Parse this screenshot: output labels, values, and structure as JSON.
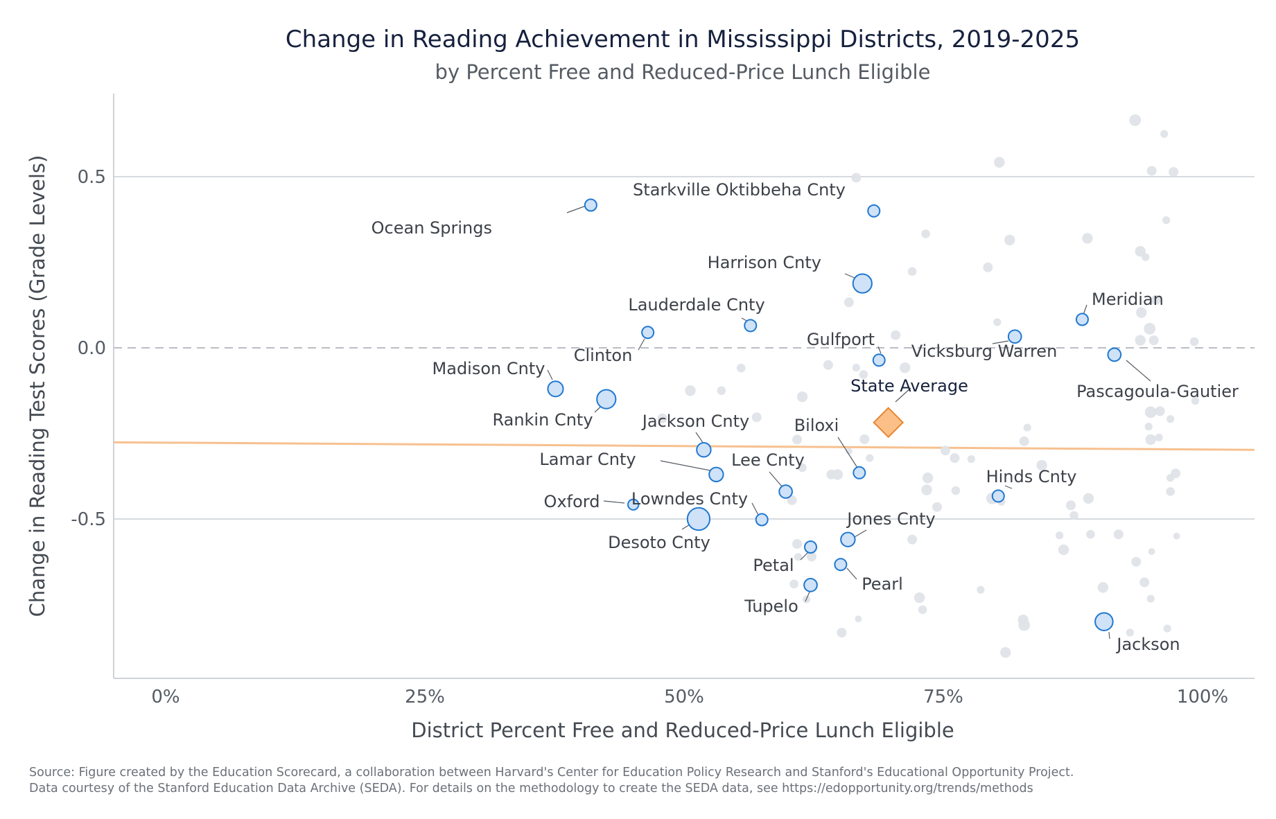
{
  "chart_data": {
    "type": "scatter",
    "title": "Change in Reading Achievement in Mississippi Districts, 2019-2025",
    "subtitle": "by Percent Free and Reduced-Price Lunch Eligible",
    "xlabel": "District Percent Free and Reduced-Price Lunch Eligible",
    "ylabel": "Change in Reading Test Scores (Grade Levels)",
    "xlim": [
      -0.05,
      1.05
    ],
    "ylim": [
      -0.97,
      0.74
    ],
    "x_ticks": [
      {
        "value": 0,
        "label": "0%"
      },
      {
        "value": 0.25,
        "label": "25%"
      },
      {
        "value": 0.5,
        "label": "50%"
      },
      {
        "value": 0.75,
        "label": "75%"
      },
      {
        "value": 1,
        "label": "100%"
      }
    ],
    "y_ticks": [
      {
        "value": 0.5,
        "label": "0.5"
      },
      {
        "value": 0,
        "label": "0.0"
      },
      {
        "value": -0.5,
        "label": "-0.5"
      }
    ],
    "grid": "horizontal",
    "zero_line": "dashed",
    "trend_line": {
      "x": [
        -0.05,
        1.05
      ],
      "y": [
        -0.276,
        -0.298
      ],
      "color": "#f7c08f"
    },
    "colors": {
      "background": "#b9c0c8",
      "highlighted_fill": "#cfe2f7",
      "highlighted_stroke": "#1f78d1",
      "state_fill": "#fbc088",
      "state_stroke": "#e8842f"
    },
    "highlighted": [
      {
        "name": "Starkville Oktibbeha Cnty",
        "x": 0.683,
        "y": 0.4,
        "size": 1.0
      },
      {
        "name": "Ocean Springs",
        "x": 0.41,
        "y": 0.417,
        "size": 1.0
      },
      {
        "name": "Harrison Cnty",
        "x": 0.672,
        "y": 0.188,
        "size": 1.6
      },
      {
        "name": "Meridian",
        "x": 0.884,
        "y": 0.083,
        "size": 1.0
      },
      {
        "name": "Lauderdale Cnty",
        "x": 0.564,
        "y": 0.065,
        "size": 1.0
      },
      {
        "name": "Clinton",
        "x": 0.465,
        "y": 0.045,
        "size": 1.0
      },
      {
        "name": "Vicksburg Warren",
        "x": 0.819,
        "y": 0.033,
        "size": 1.1
      },
      {
        "name": "Gulfport",
        "x": 0.688,
        "y": -0.036,
        "size": 1.0
      },
      {
        "name": "Pascagoula-Gautier",
        "x": 0.915,
        "y": -0.02,
        "size": 1.1
      },
      {
        "name": "Madison Cnty",
        "x": 0.376,
        "y": -0.12,
        "size": 1.3
      },
      {
        "name": "Rankin Cnty",
        "x": 0.425,
        "y": -0.15,
        "size": 1.6
      },
      {
        "name": "Jackson Cnty",
        "x": 0.519,
        "y": -0.298,
        "size": 1.2
      },
      {
        "name": "Biloxi",
        "x": 0.669,
        "y": -0.365,
        "size": 1.0
      },
      {
        "name": "Lamar Cnty",
        "x": 0.531,
        "y": -0.37,
        "size": 1.2
      },
      {
        "name": "Hinds Cnty",
        "x": 0.803,
        "y": -0.433,
        "size": 1.0
      },
      {
        "name": "Lee Cnty",
        "x": 0.598,
        "y": -0.42,
        "size": 1.1
      },
      {
        "name": "Oxford",
        "x": 0.451,
        "y": -0.458,
        "size": 0.9
      },
      {
        "name": "Lowndes Cnty",
        "x": 0.575,
        "y": -0.502,
        "size": 1.0
      },
      {
        "name": "Desoto Cnty",
        "x": 0.514,
        "y": -0.5,
        "size": 1.9
      },
      {
        "name": "Jones Cnty",
        "x": 0.658,
        "y": -0.56,
        "size": 1.2
      },
      {
        "name": "Petal",
        "x": 0.622,
        "y": -0.582,
        "size": 1.0
      },
      {
        "name": "Pearl",
        "x": 0.651,
        "y": -0.633,
        "size": 1.0
      },
      {
        "name": "Tupelo",
        "x": 0.622,
        "y": -0.693,
        "size": 1.1
      },
      {
        "name": "Jackson",
        "x": 0.905,
        "y": -0.8,
        "size": 1.5
      }
    ],
    "state_average": {
      "name": "State Average",
      "x": 0.697,
      "y": -0.218
    },
    "background_points": [
      [
        0.935,
        0.665,
        1.2
      ],
      [
        0.963,
        0.625,
        0.8
      ],
      [
        0.804,
        0.542,
        1.1
      ],
      [
        0.951,
        0.517,
        1.0
      ],
      [
        0.972,
        0.514,
        1.0
      ],
      [
        0.666,
        0.497,
        1.0
      ],
      [
        0.965,
        0.373,
        0.8
      ],
      [
        0.733,
        0.333,
        0.9
      ],
      [
        0.814,
        0.315,
        1.1
      ],
      [
        0.889,
        0.32,
        1.1
      ],
      [
        0.94,
        0.282,
        1.1
      ],
      [
        0.945,
        0.265,
        0.8
      ],
      [
        0.793,
        0.235,
        1.0
      ],
      [
        0.72,
        0.223,
        0.9
      ],
      [
        0.659,
        0.133,
        1.0
      ],
      [
        0.955,
        0.14,
        1.0
      ],
      [
        0.941,
        0.103,
        1.1
      ],
      [
        0.949,
        0.056,
        1.2
      ],
      [
        0.802,
        0.075,
        0.8
      ],
      [
        0.704,
        0.037,
        1.0
      ],
      [
        0.94,
        0.022,
        1.1
      ],
      [
        0.953,
        0.022,
        1.0
      ],
      [
        0.992,
        0.018,
        0.9
      ],
      [
        0.639,
        -0.05,
        1.0
      ],
      [
        0.713,
        -0.058,
        1.1
      ],
      [
        0.555,
        -0.059,
        0.9
      ],
      [
        0.673,
        -0.078,
        0.9
      ],
      [
        0.666,
        -0.058,
        0.8
      ],
      [
        0.506,
        -0.125,
        1.1
      ],
      [
        0.536,
        -0.125,
        0.9
      ],
      [
        0.614,
        -0.143,
        1.1
      ],
      [
        0.993,
        -0.155,
        0.8
      ],
      [
        0.95,
        -0.188,
        1.2
      ],
      [
        0.959,
        -0.185,
        1.0
      ],
      [
        0.969,
        -0.208,
        0.8
      ],
      [
        0.479,
        -0.206,
        1.0
      ],
      [
        0.57,
        -0.203,
        1.0
      ],
      [
        0.831,
        -0.233,
        0.8
      ],
      [
        0.948,
        -0.23,
        0.8
      ],
      [
        0.95,
        -0.268,
        1.1
      ],
      [
        0.958,
        -0.262,
        0.8
      ],
      [
        0.609,
        -0.268,
        1.0
      ],
      [
        0.674,
        -0.267,
        1.0
      ],
      [
        0.828,
        -0.273,
        1.0
      ],
      [
        0.752,
        -0.3,
        1.0
      ],
      [
        0.761,
        -0.322,
        1.0
      ],
      [
        0.679,
        -0.322,
        0.8
      ],
      [
        0.777,
        -0.325,
        0.8
      ],
      [
        0.659,
        -0.302,
        0.7
      ],
      [
        0.614,
        -0.35,
        0.9
      ],
      [
        0.648,
        -0.37,
        1.1
      ],
      [
        0.642,
        -0.37,
        1.0
      ],
      [
        0.735,
        -0.38,
        1.1
      ],
      [
        0.969,
        -0.38,
        0.8
      ],
      [
        0.974,
        -0.367,
        1.0
      ],
      [
        0.845,
        -0.343,
        1.1
      ],
      [
        0.734,
        -0.415,
        1.1
      ],
      [
        0.762,
        -0.417,
        0.9
      ],
      [
        0.797,
        -0.44,
        1.2
      ],
      [
        0.806,
        -0.45,
        0.8
      ],
      [
        0.89,
        -0.44,
        1.1
      ],
      [
        0.873,
        -0.46,
        1.0
      ],
      [
        0.969,
        -0.42,
        0.9
      ],
      [
        0.604,
        -0.445,
        1.0
      ],
      [
        0.744,
        -0.465,
        1.0
      ],
      [
        0.876,
        -0.49,
        0.9
      ],
      [
        0.862,
        -0.548,
        0.8
      ],
      [
        0.892,
        -0.545,
        0.9
      ],
      [
        0.919,
        -0.545,
        1.0
      ],
      [
        0.975,
        -0.55,
        0.7
      ],
      [
        0.72,
        -0.56,
        1.0
      ],
      [
        0.609,
        -0.573,
        1.0
      ],
      [
        0.623,
        -0.61,
        1.0
      ],
      [
        0.61,
        -0.611,
        0.8
      ],
      [
        0.866,
        -0.59,
        1.1
      ],
      [
        0.951,
        -0.595,
        0.7
      ],
      [
        0.936,
        -0.625,
        1.0
      ],
      [
        0.944,
        -0.685,
        1.0
      ],
      [
        0.95,
        -0.733,
        0.8
      ],
      [
        0.606,
        -0.69,
        0.9
      ],
      [
        0.786,
        -0.707,
        0.8
      ],
      [
        0.904,
        -0.7,
        1.1
      ],
      [
        0.727,
        -0.73,
        1.1
      ],
      [
        0.618,
        -0.735,
        0.8
      ],
      [
        0.73,
        -0.765,
        0.9
      ],
      [
        0.668,
        -0.792,
        0.7
      ],
      [
        0.827,
        -0.795,
        1.1
      ],
      [
        0.828,
        -0.81,
        1.2
      ],
      [
        0.652,
        -0.832,
        1.0
      ],
      [
        0.966,
        -0.82,
        0.8
      ],
      [
        0.93,
        -0.832,
        0.8
      ],
      [
        0.81,
        -0.89,
        1.1
      ]
    ]
  },
  "footer": {
    "source_line1": "Source: Figure created by the Education Scorecard, a collaboration between Harvard's Center for Education Policy Research and Stanford's Educational Opportunity Project.",
    "source_line2": "Data courtesy of the Stanford Education Data Archive (SEDA). For details on the methodology to create the SEDA data, see https://edopportunity.org/trends/methods"
  }
}
